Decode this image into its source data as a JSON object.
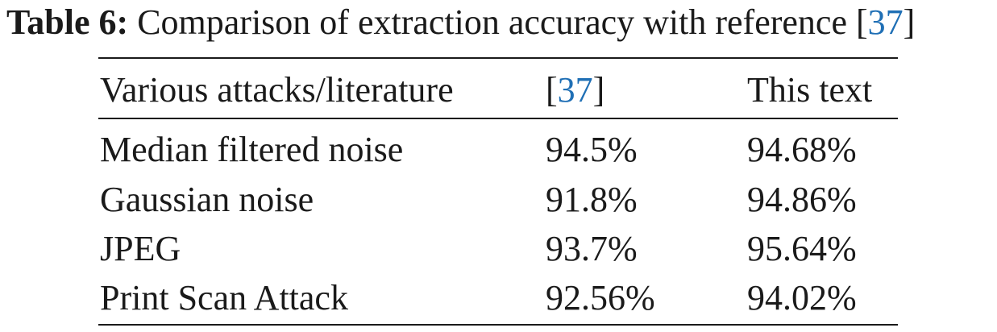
{
  "caption": {
    "label": "Table 6:",
    "text": "Comparison of extraction accuracy with reference ",
    "ref": "37"
  },
  "table": {
    "headers": {
      "col1": "Various attacks/literature",
      "col2_ref": "37",
      "col3": "This text"
    },
    "rows": [
      {
        "attack": "Median filtered noise",
        "ref_value": "94.5%",
        "this_value": "94.68%"
      },
      {
        "attack": "Gaussian noise",
        "ref_value": "91.8%",
        "this_value": "94.86%"
      },
      {
        "attack": "JPEG",
        "ref_value": "93.7%",
        "this_value": "95.64%"
      },
      {
        "attack": "Print Scan Attack",
        "ref_value": "92.56%",
        "this_value": "94.02%"
      }
    ]
  },
  "colors": {
    "citation": "#1f6fb5",
    "text": "#1a1a1a"
  }
}
